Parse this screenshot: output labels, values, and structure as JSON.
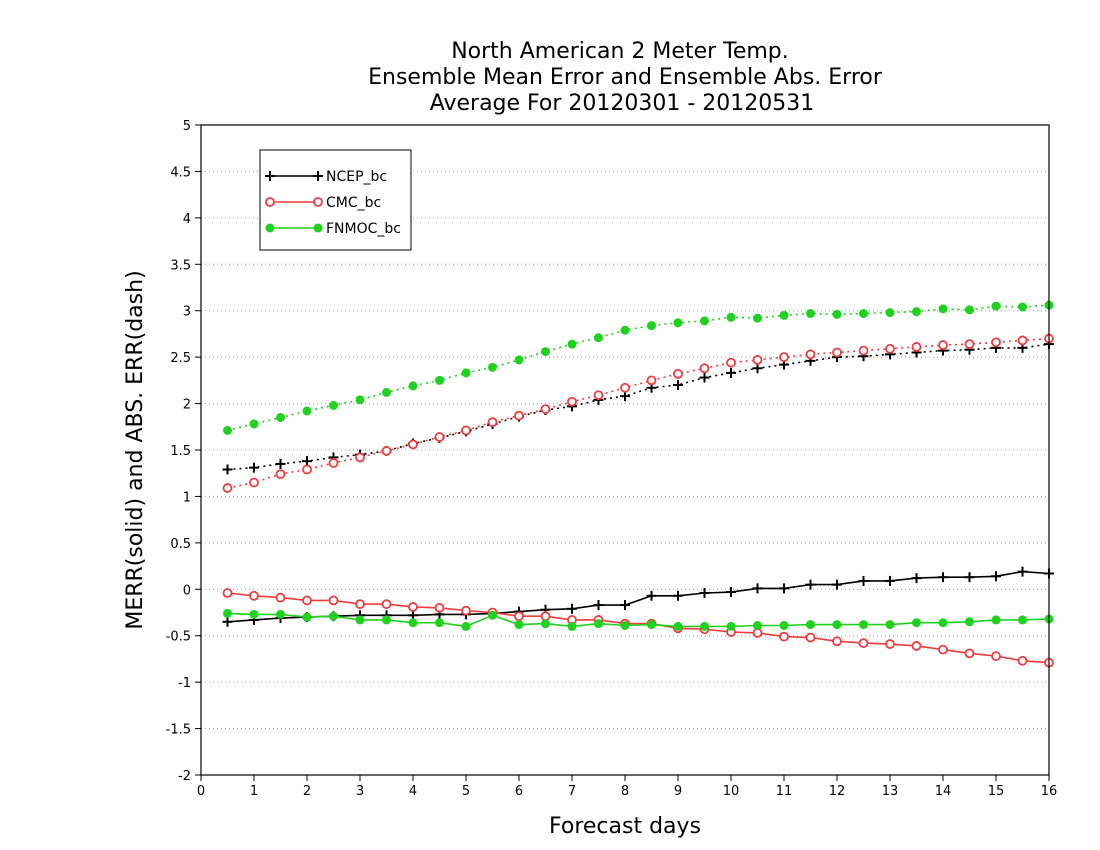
{
  "chart_data": {
    "type": "line",
    "title": [
      "North American 2 Meter Temp.",
      "Ensemble Mean Error and Ensemble Abs. Error",
      "Average For 20120301 - 20120531"
    ],
    "xlabel": "Forecast days",
    "ylabel": "MERR(solid) and ABS. ERR(dash)",
    "xlim": [
      0,
      16
    ],
    "ylim": [
      -2,
      5
    ],
    "xticks": [
      0,
      1,
      2,
      3,
      4,
      5,
      6,
      7,
      8,
      9,
      10,
      11,
      12,
      13,
      14,
      15,
      16
    ],
    "yticks": [
      -2,
      -1.5,
      -1,
      -0.5,
      0,
      0.5,
      1,
      1.5,
      2,
      2.5,
      3,
      3.5,
      4,
      4.5,
      5
    ],
    "grid": "horizontal dotted",
    "legend_position": "top-left",
    "x": [
      0.5,
      1,
      1.5,
      2,
      2.5,
      3,
      3.5,
      4,
      4.5,
      5,
      5.5,
      6,
      6.5,
      7,
      7.5,
      8,
      8.5,
      9,
      9.5,
      10,
      10.5,
      11,
      11.5,
      12,
      12.5,
      13,
      13.5,
      14,
      14.5,
      15,
      15.5,
      16
    ],
    "series": [
      {
        "name": "NCEP_bc",
        "color": "#000000",
        "marker": "plus",
        "mean_error": [
          -0.35,
          -0.33,
          -0.31,
          -0.3,
          -0.29,
          -0.28,
          -0.28,
          -0.28,
          -0.27,
          -0.27,
          -0.26,
          -0.24,
          -0.22,
          -0.21,
          -0.17,
          -0.17,
          -0.07,
          -0.07,
          -0.04,
          -0.03,
          0.01,
          0.01,
          0.05,
          0.05,
          0.09,
          0.09,
          0.12,
          0.13,
          0.13,
          0.14,
          0.19,
          0.17
        ],
        "abs_error": [
          1.29,
          1.31,
          1.35,
          1.38,
          1.42,
          1.45,
          1.49,
          1.57,
          1.63,
          1.7,
          1.78,
          1.86,
          1.93,
          1.97,
          2.04,
          2.08,
          2.17,
          2.2,
          2.28,
          2.33,
          2.38,
          2.42,
          2.46,
          2.5,
          2.51,
          2.53,
          2.55,
          2.57,
          2.58,
          2.6,
          2.6,
          2.64
        ]
      },
      {
        "name": "CMC_bc",
        "color": "#f03c3c",
        "marker": "open-circle",
        "mean_error": [
          -0.04,
          -0.07,
          -0.09,
          -0.12,
          -0.12,
          -0.16,
          -0.16,
          -0.19,
          -0.2,
          -0.23,
          -0.25,
          -0.29,
          -0.29,
          -0.33,
          -0.33,
          -0.37,
          -0.37,
          -0.42,
          -0.43,
          -0.46,
          -0.47,
          -0.51,
          -0.52,
          -0.56,
          -0.58,
          -0.59,
          -0.61,
          -0.65,
          -0.69,
          -0.72,
          -0.77,
          -0.79
        ],
        "abs_error": [
          1.09,
          1.15,
          1.24,
          1.29,
          1.36,
          1.42,
          1.49,
          1.56,
          1.64,
          1.71,
          1.8,
          1.87,
          1.94,
          2.02,
          2.09,
          2.17,
          2.25,
          2.32,
          2.38,
          2.44,
          2.47,
          2.5,
          2.53,
          2.55,
          2.57,
          2.59,
          2.61,
          2.63,
          2.64,
          2.66,
          2.68,
          2.7
        ]
      },
      {
        "name": "FNMOC_bc",
        "color": "#1ed21e",
        "marker": "filled-circle",
        "mean_error": [
          -0.26,
          -0.27,
          -0.27,
          -0.3,
          -0.29,
          -0.33,
          -0.33,
          -0.36,
          -0.36,
          -0.4,
          -0.28,
          -0.38,
          -0.37,
          -0.4,
          -0.37,
          -0.39,
          -0.38,
          -0.4,
          -0.4,
          -0.4,
          -0.39,
          -0.39,
          -0.38,
          -0.38,
          -0.38,
          -0.38,
          -0.36,
          -0.36,
          -0.35,
          -0.33,
          -0.33,
          -0.32
        ],
        "abs_error": [
          1.71,
          1.78,
          1.85,
          1.92,
          1.98,
          2.04,
          2.12,
          2.19,
          2.25,
          2.33,
          2.39,
          2.47,
          2.56,
          2.64,
          2.71,
          2.79,
          2.84,
          2.87,
          2.89,
          2.93,
          2.92,
          2.95,
          2.97,
          2.96,
          2.97,
          2.98,
          2.99,
          3.02,
          3.01,
          3.05,
          3.04,
          3.06
        ]
      }
    ]
  }
}
